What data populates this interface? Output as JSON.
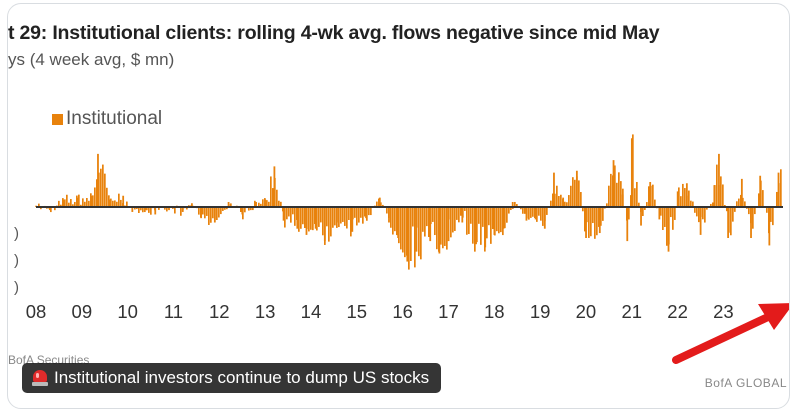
{
  "header": {
    "title": "t 29: Institutional clients: rolling 4-wk avg. flows negative since mid May",
    "subtitle": "ys (4 week avg, $ mn)"
  },
  "legend": {
    "label": "Institutional",
    "color": "#e8820c"
  },
  "footer": {
    "source": "BofA Securities",
    "brand": "BofA GLOBAL"
  },
  "caption": {
    "text": "Institutional investors continue to dump US stocks",
    "icon": "siren-icon"
  },
  "annotation": {
    "arrow_color": "#e31b1b",
    "direction": "points-up-right"
  },
  "left_clipped_labels": [
    ")",
    ")",
    ")"
  ],
  "chart_data": {
    "type": "bar",
    "series": [
      {
        "name": "Institutional",
        "color": "#e8820c"
      }
    ],
    "x_ticks": [
      "08",
      "09",
      "10",
      "11",
      "12",
      "13",
      "14",
      "15",
      "16",
      "17",
      "18",
      "19",
      "20",
      "21",
      "22",
      "23"
    ],
    "zero_line": true,
    "grid": false,
    "legend_position": "top-left",
    "xlim": [
      2008.0,
      2024.3
    ],
    "ylim": [
      -1.0,
      1.2
    ],
    "points": [
      [
        2008.0,
        0.02
      ],
      [
        2008.3,
        -0.05
      ],
      [
        2008.6,
        0.12
      ],
      [
        2008.9,
        0.15
      ],
      [
        2009.2,
        0.18
      ],
      [
        2009.35,
        0.85
      ],
      [
        2009.6,
        0.12
      ],
      [
        2009.9,
        0.18
      ],
      [
        2010.1,
        -0.08
      ],
      [
        2010.4,
        -0.05
      ],
      [
        2010.6,
        -0.12
      ],
      [
        2010.9,
        -0.05
      ],
      [
        2011.2,
        -0.08
      ],
      [
        2011.4,
        0.06
      ],
      [
        2011.6,
        -0.18
      ],
      [
        2011.9,
        -0.25
      ],
      [
        2012.2,
        0.08
      ],
      [
        2012.5,
        -0.12
      ],
      [
        2012.8,
        0.08
      ],
      [
        2013.0,
        0.12
      ],
      [
        2013.2,
        0.65
      ],
      [
        2013.4,
        -0.22
      ],
      [
        2013.7,
        -0.35
      ],
      [
        2013.9,
        -0.45
      ],
      [
        2014.1,
        -0.35
      ],
      [
        2014.3,
        -0.55
      ],
      [
        2014.6,
        -0.25
      ],
      [
        2014.9,
        -0.4
      ],
      [
        2015.2,
        -0.18
      ],
      [
        2015.5,
        0.15
      ],
      [
        2015.7,
        -0.25
      ],
      [
        2015.9,
        -0.5
      ],
      [
        2016.1,
        -0.88
      ],
      [
        2016.3,
        -0.72
      ],
      [
        2016.6,
        -0.55
      ],
      [
        2016.8,
        -0.75
      ],
      [
        2017.0,
        -0.55
      ],
      [
        2017.3,
        -0.25
      ],
      [
        2017.6,
        -0.6
      ],
      [
        2017.8,
        -0.65
      ],
      [
        2018.0,
        -0.45
      ],
      [
        2018.2,
        -0.35
      ],
      [
        2018.4,
        0.08
      ],
      [
        2018.7,
        -0.22
      ],
      [
        2018.9,
        -0.2
      ],
      [
        2019.1,
        -0.35
      ],
      [
        2019.3,
        0.55
      ],
      [
        2019.5,
        0.15
      ],
      [
        2019.8,
        0.58
      ],
      [
        2020.0,
        -0.5
      ],
      [
        2020.3,
        -0.42
      ],
      [
        2020.6,
        0.75
      ],
      [
        2020.8,
        0.2
      ],
      [
        2020.9,
        -0.55
      ],
      [
        2021.0,
        1.1
      ],
      [
        2021.2,
        -0.3
      ],
      [
        2021.4,
        0.4
      ],
      [
        2021.6,
        -0.2
      ],
      [
        2021.8,
        -0.72
      ],
      [
        2022.0,
        0.25
      ],
      [
        2022.2,
        0.38
      ],
      [
        2022.5,
        -0.45
      ],
      [
        2022.8,
        0.35
      ],
      [
        2022.9,
        0.85
      ],
      [
        2023.1,
        -0.5
      ],
      [
        2023.4,
        0.45
      ],
      [
        2023.6,
        -0.5
      ],
      [
        2023.8,
        0.5
      ],
      [
        2024.0,
        -0.62
      ],
      [
        2024.2,
        0.55
      ]
    ]
  }
}
